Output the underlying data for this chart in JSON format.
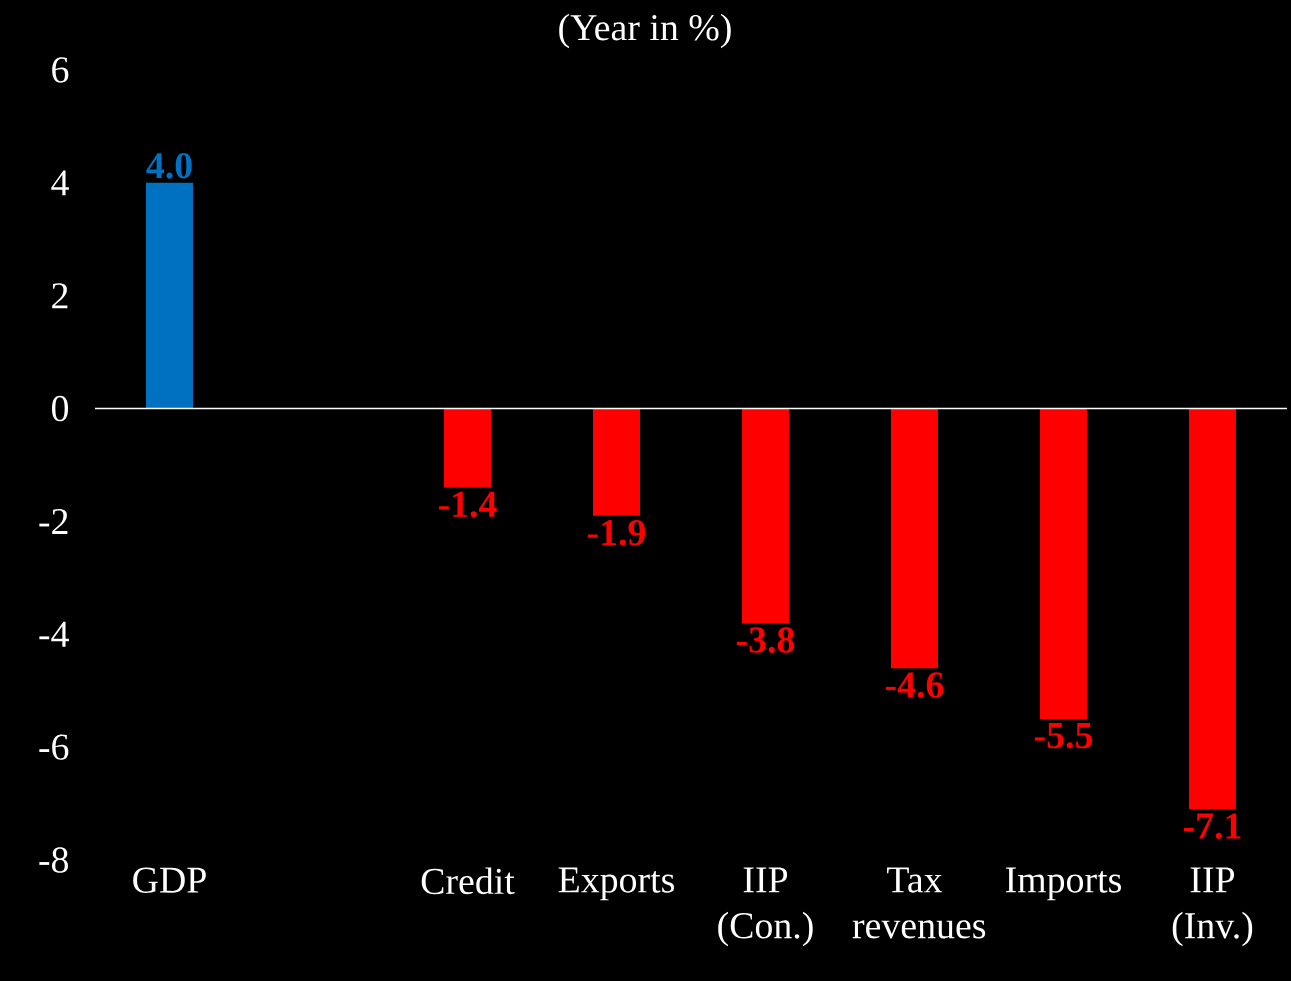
{
  "chart_data": {
    "type": "bar",
    "title": "(Year in %)",
    "categories": [
      "GDP",
      null,
      "Credit",
      "Exports",
      "IIP (Con.)",
      "Tax revenues",
      "Imports",
      "IIP (Inv.)"
    ],
    "values": [
      4.0,
      null,
      -1.4,
      -1.9,
      -3.8,
      -4.6,
      -5.5,
      -7.1
    ],
    "colors": [
      "#0070c0",
      "#ff0000",
      "#ff0000",
      "#ff0000",
      "#ff0000",
      "#ff0000",
      "#ff0000",
      "#ff0000"
    ],
    "value_labels": [
      "4.0",
      null,
      "-1.4",
      "-1.9",
      "-3.8",
      "-4.6",
      "-5.5",
      "-7.1"
    ],
    "ylim": [
      -8,
      6
    ],
    "yticks": [
      -8,
      -6,
      -4,
      -2,
      0,
      2,
      4,
      6
    ]
  }
}
